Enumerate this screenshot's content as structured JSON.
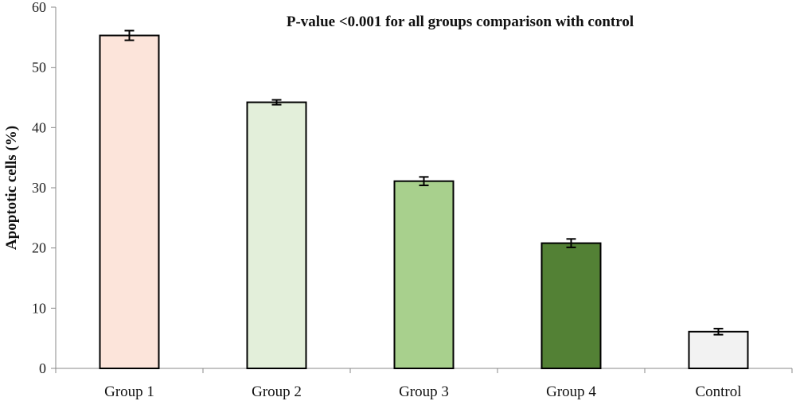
{
  "chart_data": {
    "type": "bar",
    "title": "",
    "annotation": "P-value <0.001 for all groups comparison with control",
    "xlabel": "",
    "ylabel": "Apoptotic cells (%)",
    "ylim": [
      0,
      60
    ],
    "yticks": [
      0,
      10,
      20,
      30,
      40,
      50,
      60
    ],
    "categories": [
      "Group 1",
      "Group 2",
      "Group 3",
      "Group 4",
      "Control"
    ],
    "values": [
      55.3,
      44.2,
      31.1,
      20.8,
      6.1
    ],
    "errors": [
      0.8,
      0.4,
      0.7,
      0.7,
      0.5
    ],
    "colors": [
      "#fce4da",
      "#e3efda",
      "#a8d08d",
      "#538135",
      "#f2f2f2"
    ],
    "grid": false,
    "legend": "none"
  }
}
